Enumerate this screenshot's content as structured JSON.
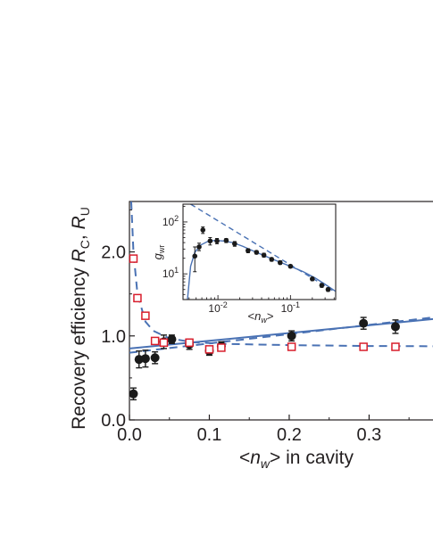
{
  "chart_data": [
    {
      "type": "scatter",
      "panel": "main",
      "xlabel": {
        "prefix": "<",
        "var": "n",
        "sub": "w",
        "suffix": "> in cavity"
      },
      "ylabel": {
        "text": "Recovery efficiency ",
        "var1": "R",
        "sub1": "C",
        "sep": ", ",
        "var2": "R",
        "sub2": "U"
      },
      "xlim": [
        0,
        0.38
      ],
      "ylim": [
        0,
        2.6
      ],
      "xticks": [
        {
          "value": 0.0,
          "label": "0.0"
        },
        {
          "value": 0.1,
          "label": "0.1"
        },
        {
          "value": 0.2,
          "label": "0.2"
        },
        {
          "value": 0.3,
          "label": "0.3"
        }
      ],
      "yticks": [
        {
          "value": 0.0,
          "label": "0.0"
        },
        {
          "value": 1.0,
          "label": "1.0"
        },
        {
          "value": 2.0,
          "label": "2.0"
        }
      ],
      "series": [
        {
          "marker": "filled-circle",
          "color": "#1a1a1a",
          "points": [
            {
              "x": 0.005,
              "y": 0.31,
              "err": 0.07
            },
            {
              "x": 0.012,
              "y": 0.72,
              "err": 0.1
            },
            {
              "x": 0.02,
              "y": 0.73,
              "err": 0.1
            },
            {
              "x": 0.032,
              "y": 0.74,
              "err": 0.07
            },
            {
              "x": 0.043,
              "y": 0.93,
              "err": 0.08
            },
            {
              "x": 0.053,
              "y": 0.96,
              "err": 0.05
            },
            {
              "x": 0.075,
              "y": 0.9,
              "err": 0.06
            },
            {
              "x": 0.1,
              "y": 0.82,
              "err": 0.05
            },
            {
              "x": 0.115,
              "y": 0.88,
              "err": 0.05
            },
            {
              "x": 0.203,
              "y": 1.0,
              "err": 0.06
            },
            {
              "x": 0.293,
              "y": 1.15,
              "err": 0.07
            },
            {
              "x": 0.333,
              "y": 1.11,
              "err": 0.08
            }
          ]
        },
        {
          "marker": "open-square",
          "color": "#d81e2c",
          "points": [
            {
              "x": 0.005,
              "y": 1.92
            },
            {
              "x": 0.01,
              "y": 1.45
            },
            {
              "x": 0.02,
              "y": 1.24
            },
            {
              "x": 0.032,
              "y": 0.94
            },
            {
              "x": 0.043,
              "y": 0.92
            },
            {
              "x": 0.075,
              "y": 0.92
            },
            {
              "x": 0.1,
              "y": 0.84
            },
            {
              "x": 0.115,
              "y": 0.86
            },
            {
              "x": 0.203,
              "y": 0.87
            },
            {
              "x": 0.293,
              "y": 0.87
            },
            {
              "x": 0.333,
              "y": 0.87
            }
          ]
        }
      ],
      "curves": [
        {
          "style": "solid",
          "color": "#4a72b4",
          "x": [
            0.0,
            0.38
          ],
          "y": [
            0.85,
            1.2
          ]
        },
        {
          "style": "dashed",
          "color": "#4a72b4",
          "x": [
            0.0,
            0.38
          ],
          "y": [
            0.8,
            1.22
          ]
        },
        {
          "style": "dashed",
          "color": "#4a72b4",
          "x": [
            0.0022,
            0.005,
            0.01,
            0.02,
            0.03,
            0.05,
            0.08,
            0.12,
            0.2,
            0.3,
            0.38
          ],
          "y": [
            2.6,
            2.0,
            1.5,
            1.17,
            1.06,
            0.97,
            0.925,
            0.905,
            0.89,
            0.88,
            0.877
          ]
        }
      ]
    },
    {
      "type": "scatter",
      "panel": "inset",
      "xscale": "log",
      "yscale": "log",
      "xlim": [
        0.0033,
        0.42
      ],
      "ylim": [
        3.2,
        220
      ],
      "xlabel": {
        "prefix": "<",
        "var": "n",
        "sub": "w",
        "suffix": ">"
      },
      "ylabel": {
        "var": "g",
        "sub": "wr"
      },
      "xticks": [
        {
          "value": 0.01,
          "base": "10",
          "exp": "-2"
        },
        {
          "value": 0.1,
          "base": "10",
          "exp": "-1"
        }
      ],
      "yticks": [
        {
          "value": 10,
          "base": "10",
          "exp": "1"
        },
        {
          "value": 100,
          "base": "10",
          "exp": "2"
        }
      ],
      "series": [
        {
          "marker": "filled-circle",
          "color": "#1a1a1a",
          "points": [
            {
              "x": 0.0048,
              "y": 22,
              "lo": 11,
              "hi": 33
            },
            {
              "x": 0.0055,
              "y": 33,
              "lo": 28,
              "hi": 39
            },
            {
              "x": 0.0062,
              "y": 70,
              "lo": 60,
              "hi": 80
            },
            {
              "x": 0.0078,
              "y": 43,
              "lo": 36,
              "hi": 50
            },
            {
              "x": 0.0097,
              "y": 43,
              "lo": 38,
              "hi": 48
            },
            {
              "x": 0.013,
              "y": 44,
              "lo": 40,
              "hi": 48
            },
            {
              "x": 0.017,
              "y": 38,
              "lo": 34,
              "hi": 42
            },
            {
              "x": 0.026,
              "y": 28,
              "lo": 25.5,
              "hi": 30.5
            },
            {
              "x": 0.034,
              "y": 26,
              "lo": 24,
              "hi": 28
            },
            {
              "x": 0.043,
              "y": 23,
              "lo": 21,
              "hi": 25
            },
            {
              "x": 0.055,
              "y": 19,
              "lo": 17.5,
              "hi": 20.5
            },
            {
              "x": 0.072,
              "y": 16.5,
              "lo": 15.2,
              "hi": 17.8
            },
            {
              "x": 0.1,
              "y": 14,
              "lo": 13,
              "hi": 15
            },
            {
              "x": 0.2,
              "y": 8,
              "lo": 7.4,
              "hi": 8.6
            },
            {
              "x": 0.27,
              "y": 6,
              "lo": 5.5,
              "hi": 6.5
            },
            {
              "x": 0.33,
              "y": 5,
              "lo": 4.6,
              "hi": 5.4
            }
          ]
        }
      ],
      "curves": [
        {
          "style": "solid",
          "color": "#4a72b4",
          "x": [
            0.0038,
            0.0042,
            0.0048,
            0.0058,
            0.0072,
            0.009,
            0.012,
            0.016,
            0.022,
            0.03,
            0.045,
            0.07,
            0.1,
            0.15,
            0.22,
            0.3,
            0.42
          ],
          "y": [
            3.2,
            14,
            26,
            36,
            42,
            44,
            43,
            40,
            34,
            28,
            22,
            17,
            14,
            11,
            8.3,
            6.3,
            4.6
          ]
        },
        {
          "style": "dashed",
          "color": "#4a72b4",
          "x": [
            0.0042,
            0.42
          ],
          "y": [
            220,
            4.4
          ]
        }
      ]
    }
  ]
}
